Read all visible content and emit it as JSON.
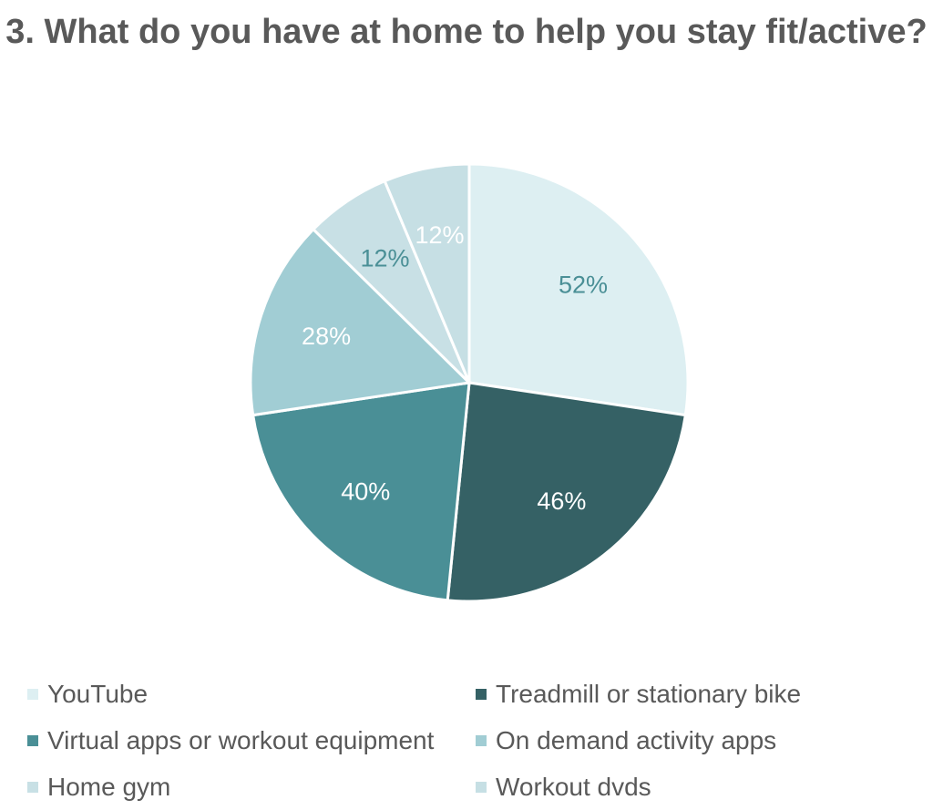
{
  "chart_data": {
    "type": "pie",
    "title": "3. What do you have at home to help you stay fit/active?",
    "categories": [
      "YouTube",
      "Treadmill or stationary bike",
      "Virtual apps or workout equipment",
      "On demand activity apps",
      "Home gym",
      "Workout dvds"
    ],
    "values": [
      52,
      46,
      40,
      28,
      12,
      12
    ],
    "data_labels": [
      "52%",
      "46%",
      "40%",
      "28%",
      "12%",
      "12%"
    ],
    "colors": [
      "#DDEFF2",
      "#356165",
      "#4A8F96",
      "#A1CDD4",
      "#C8E0E5",
      "#C6DFE4"
    ],
    "label_colors": [
      "#4A8F96",
      "#FFFFFF",
      "#FFFFFF",
      "#FFFFFF",
      "#4A8F96",
      "#FFFFFF"
    ],
    "legend_position": "bottom"
  }
}
